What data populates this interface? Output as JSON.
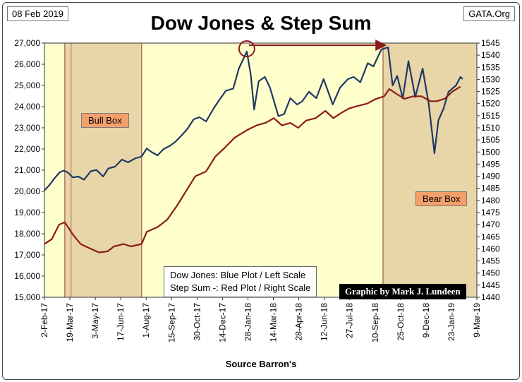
{
  "header": {
    "date": "08 Feb 2019",
    "site": "GATA.Org",
    "title": "Dow Jones & Step Sum"
  },
  "legend": {
    "line1": "Dow Jones: Blue Plot / Left Scale",
    "line2": "Step Sum -: Red Plot / Right Scale"
  },
  "credit": "Graphic by Mark J. Lundeen",
  "labels": {
    "bull_box": "Bull Box",
    "bear_box": "Bear Box",
    "source": "Source Barron's"
  },
  "colors": {
    "plot_bg": "#ffffcc",
    "box_fill": "#e8d6a8",
    "dow_line": "#1f3864",
    "step_line": "#8b1a1a",
    "box_border": "#a05a4a",
    "label_fill": "#f4a06c"
  },
  "chart_data": {
    "type": "line",
    "x_range": [
      "2017-02-02",
      "2019-03-09"
    ],
    "x_tick_labels": [
      "2-Feb-17",
      "19-Mar-17",
      "3-May-17",
      "17-Jun-17",
      "1-Aug-17",
      "15-Sep-17",
      "30-Oct-17",
      "14-Dec-17",
      "28-Jan-18",
      "14-Mar-18",
      "28-Apr-18",
      "12-Jun-18",
      "27-Jul-18",
      "10-Sep-18",
      "25-Oct-18",
      "9-Dec-18",
      "23-Jan-19",
      "9-Mar-19"
    ],
    "left_axis": {
      "min": 15000,
      "max": 27000,
      "step": 1000,
      "tick_labels": [
        "15,000",
        "16,000",
        "17,000",
        "18,000",
        "19,000",
        "20,000",
        "21,000",
        "22,000",
        "23,000",
        "24,000",
        "25,000",
        "26,000",
        "27,000"
      ]
    },
    "right_axis": {
      "min": 1440,
      "max": 1545,
      "step": 5,
      "tick_labels": [
        "1440",
        "1445",
        "1450",
        "1455",
        "1460",
        "1465",
        "1470",
        "1475",
        "1480",
        "1485",
        "1490",
        "1495",
        "1500",
        "1505",
        "1510",
        "1515",
        "1520",
        "1525",
        "1530",
        "1535",
        "1540",
        "1545"
      ]
    },
    "bull_box_range": [
      "2017-03-10",
      "2017-07-24"
    ],
    "bear_box_range": [
      "2018-09-24",
      "2019-03-09"
    ],
    "grid": false,
    "series": [
      {
        "name": "Dow Jones",
        "axis": "left",
        "points": [
          [
            "2017-02-02",
            20050
          ],
          [
            "2017-02-10",
            20270
          ],
          [
            "2017-02-20",
            20620
          ],
          [
            "2017-03-01",
            20900
          ],
          [
            "2017-03-08",
            20980
          ],
          [
            "2017-03-15",
            20900
          ],
          [
            "2017-03-24",
            20660
          ],
          [
            "2017-04-03",
            20700
          ],
          [
            "2017-04-13",
            20550
          ],
          [
            "2017-04-25",
            20950
          ],
          [
            "2017-05-05",
            21010
          ],
          [
            "2017-05-17",
            20700
          ],
          [
            "2017-05-26",
            21080
          ],
          [
            "2017-06-07",
            21170
          ],
          [
            "2017-06-19",
            21500
          ],
          [
            "2017-06-30",
            21370
          ],
          [
            "2017-07-12",
            21550
          ],
          [
            "2017-07-24",
            21650
          ],
          [
            "2017-08-02",
            22020
          ],
          [
            "2017-08-11",
            21850
          ],
          [
            "2017-08-21",
            21700
          ],
          [
            "2017-09-01",
            22000
          ],
          [
            "2017-09-12",
            22150
          ],
          [
            "2017-09-22",
            22350
          ],
          [
            "2017-10-03",
            22650
          ],
          [
            "2017-10-13",
            22950
          ],
          [
            "2017-10-24",
            23400
          ],
          [
            "2017-11-03",
            23500
          ],
          [
            "2017-11-15",
            23300
          ],
          [
            "2017-11-28",
            23900
          ],
          [
            "2017-12-08",
            24300
          ],
          [
            "2017-12-20",
            24750
          ],
          [
            "2018-01-02",
            24850
          ],
          [
            "2018-01-12",
            25800
          ],
          [
            "2018-01-26",
            26600
          ],
          [
            "2018-02-02",
            25500
          ],
          [
            "2018-02-08",
            23860
          ],
          [
            "2018-02-16",
            25200
          ],
          [
            "2018-02-27",
            25400
          ],
          [
            "2018-03-08",
            24900
          ],
          [
            "2018-03-23",
            23550
          ],
          [
            "2018-04-02",
            23650
          ],
          [
            "2018-04-13",
            24400
          ],
          [
            "2018-04-25",
            24100
          ],
          [
            "2018-05-04",
            24250
          ],
          [
            "2018-05-16",
            24700
          ],
          [
            "2018-05-29",
            24400
          ],
          [
            "2018-06-11",
            25300
          ],
          [
            "2018-06-27",
            24100
          ],
          [
            "2018-07-10",
            24900
          ],
          [
            "2018-07-24",
            25300
          ],
          [
            "2018-08-03",
            25400
          ],
          [
            "2018-08-15",
            25150
          ],
          [
            "2018-08-28",
            26050
          ],
          [
            "2018-09-07",
            25900
          ],
          [
            "2018-09-21",
            26700
          ],
          [
            "2018-10-03",
            26800
          ],
          [
            "2018-10-11",
            25000
          ],
          [
            "2018-10-19",
            25450
          ],
          [
            "2018-10-29",
            24400
          ],
          [
            "2018-11-08",
            26150
          ],
          [
            "2018-11-20",
            24450
          ],
          [
            "2018-12-03",
            25800
          ],
          [
            "2018-12-14",
            24100
          ],
          [
            "2018-12-24",
            21800
          ],
          [
            "2018-12-31",
            23350
          ],
          [
            "2019-01-09",
            23900
          ],
          [
            "2019-01-18",
            24700
          ],
          [
            "2019-01-31",
            25000
          ],
          [
            "2019-02-08",
            25400
          ],
          [
            "2019-02-12",
            25300
          ]
        ]
      },
      {
        "name": "Step Sum",
        "axis": "right",
        "points": [
          [
            "2017-02-02",
            1462
          ],
          [
            "2017-02-15",
            1464
          ],
          [
            "2017-02-28",
            1470
          ],
          [
            "2017-03-10",
            1471
          ],
          [
            "2017-03-24",
            1466
          ],
          [
            "2017-04-07",
            1462
          ],
          [
            "2017-04-25",
            1460
          ],
          [
            "2017-05-10",
            1458.5
          ],
          [
            "2017-05-25",
            1459
          ],
          [
            "2017-06-05",
            1461
          ],
          [
            "2017-06-22",
            1462
          ],
          [
            "2017-07-05",
            1461
          ],
          [
            "2017-07-24",
            1462
          ],
          [
            "2017-08-02",
            1467
          ],
          [
            "2017-08-21",
            1469
          ],
          [
            "2017-09-07",
            1472
          ],
          [
            "2017-09-25",
            1478
          ],
          [
            "2017-10-11",
            1484
          ],
          [
            "2017-10-27",
            1490
          ],
          [
            "2017-11-15",
            1492
          ],
          [
            "2017-12-01",
            1498
          ],
          [
            "2017-12-19",
            1502
          ],
          [
            "2018-01-05",
            1506
          ],
          [
            "2018-01-26",
            1509
          ],
          [
            "2018-02-12",
            1511
          ],
          [
            "2018-02-28",
            1512
          ],
          [
            "2018-03-15",
            1514
          ],
          [
            "2018-03-29",
            1511
          ],
          [
            "2018-04-13",
            1512
          ],
          [
            "2018-04-27",
            1510
          ],
          [
            "2018-05-11",
            1513
          ],
          [
            "2018-05-28",
            1514
          ],
          [
            "2018-06-14",
            1517
          ],
          [
            "2018-06-28",
            1514
          ],
          [
            "2018-07-11",
            1516
          ],
          [
            "2018-07-26",
            1518
          ],
          [
            "2018-08-10",
            1519
          ],
          [
            "2018-08-27",
            1520
          ],
          [
            "2018-09-12",
            1522
          ],
          [
            "2018-09-26",
            1523
          ],
          [
            "2018-10-05",
            1526
          ],
          [
            "2018-10-18",
            1524
          ],
          [
            "2018-11-01",
            1522
          ],
          [
            "2018-11-16",
            1523
          ],
          [
            "2018-12-01",
            1523
          ],
          [
            "2018-12-17",
            1521
          ],
          [
            "2018-12-28",
            1521
          ],
          [
            "2019-01-11",
            1522
          ],
          [
            "2019-01-25",
            1525
          ],
          [
            "2019-02-08",
            1527
          ]
        ]
      }
    ],
    "annotations": [
      {
        "type": "circle",
        "at": [
          "2018-01-26",
          26600
        ],
        "axis": "left"
      },
      {
        "type": "arrow",
        "from": [
          "2018-01-30",
          26900
        ],
        "to": [
          "2018-09-28",
          26900
        ],
        "axis": "left"
      }
    ]
  }
}
